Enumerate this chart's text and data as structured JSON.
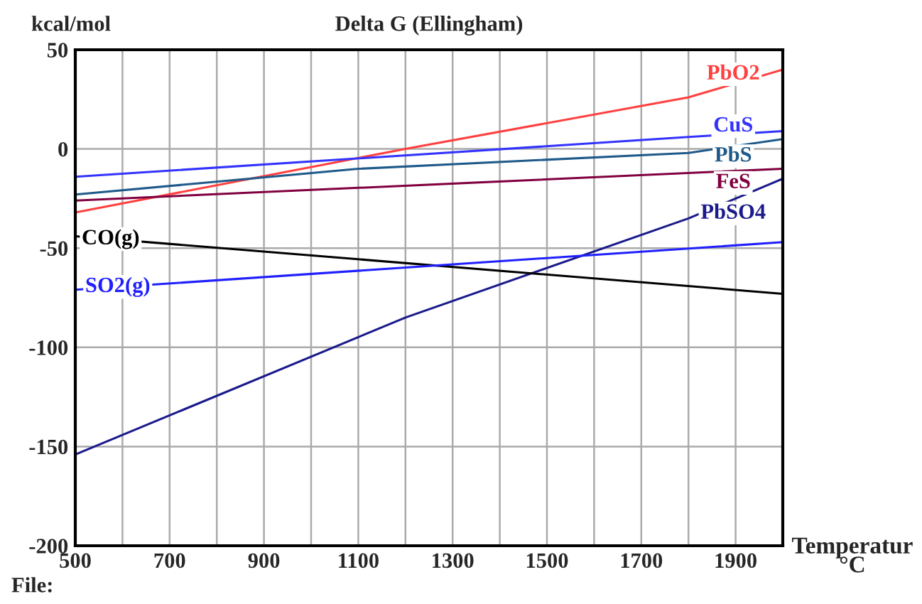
{
  "chart_data": {
    "type": "line",
    "title": "Delta G (Ellingham)",
    "xlabel": "Temperatur\n°C",
    "ylabel": "kcal/mol",
    "annotations": [
      "File:"
    ],
    "xlim": [
      500,
      2000
    ],
    "ylim": [
      -200,
      50
    ],
    "xticks": [
      500,
      {
        "value": 600,
        "label": null
      },
      700,
      {
        "value": 800,
        "label": null
      },
      900,
      {
        "value": 1000,
        "label": null
      },
      1100,
      {
        "value": 1200,
        "label": null
      },
      1300,
      {
        "value": 1400,
        "label": null
      },
      1500,
      {
        "value": 1600,
        "label": null
      },
      1700,
      {
        "value": 1800,
        "label": null
      },
      1900,
      {
        "value": 2000,
        "label": null
      }
    ],
    "yticks": [
      -200,
      -150,
      -100,
      -50,
      0,
      50
    ],
    "grid": true,
    "legend": false,
    "marker": "none",
    "line_style": "solid",
    "series": [
      {
        "name": "PbO2",
        "color": "#ff4040",
        "x": [
          500,
          1200,
          1800,
          2000
        ],
        "values": [
          -32,
          0,
          26,
          40
        ]
      },
      {
        "name": "CuS",
        "color": "#3333ff",
        "x": [
          500,
          1800,
          2000
        ],
        "values": [
          -14,
          6,
          9
        ]
      },
      {
        "name": "PbS",
        "color": "#1f5a8a",
        "x": [
          500,
          1100,
          1800,
          2000
        ],
        "values": [
          -23,
          -10,
          -2,
          5
        ]
      },
      {
        "name": "FeS",
        "color": "#800040",
        "x": [
          500,
          2000
        ],
        "values": [
          -26,
          -10
        ]
      },
      {
        "name": "PbSO4",
        "color": "#1a1a8c",
        "x": [
          500,
          1200,
          1800,
          2000
        ],
        "values": [
          -154,
          -85,
          -35,
          -15
        ]
      },
      {
        "name": "CO(g)",
        "color": "#000000",
        "x": [
          500,
          2000
        ],
        "values": [
          -44,
          -73
        ]
      },
      {
        "name": "SO2(g)",
        "color": "#2020ff",
        "x": [
          500,
          2000
        ],
        "values": [
          -71,
          -47
        ]
      }
    ]
  }
}
